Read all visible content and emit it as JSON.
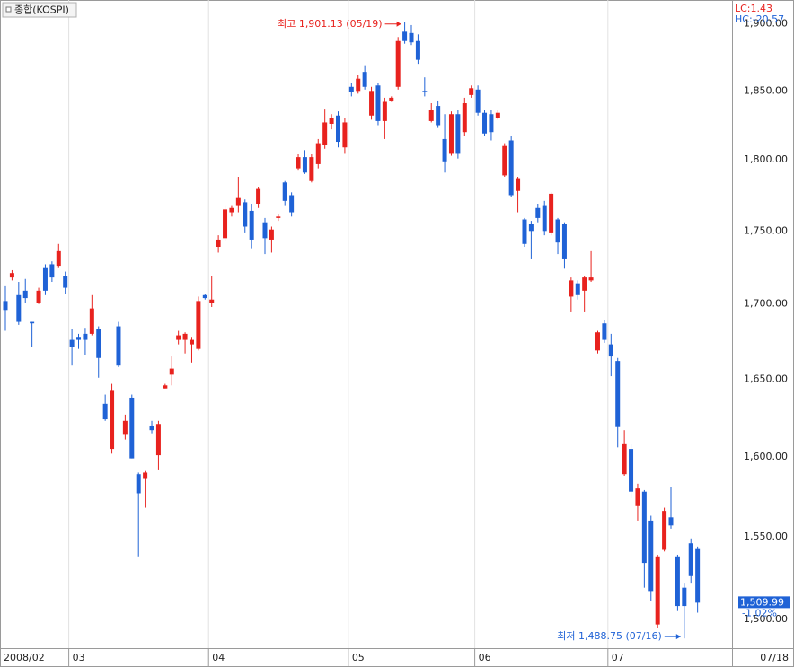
{
  "chart_data": {
    "type": "candlestick",
    "legend": "종합(KOSPI)",
    "lc_label": "LC:1.43",
    "hc_label": "HC:-20.57",
    "high_label": "최고 1,901.13 (05/19)",
    "low_label": "최저 1,488.75 (07/16)",
    "last_price": {
      "value": 1509.99,
      "label": "1,509.99"
    },
    "change_label": "-1.02%",
    "end_label": "07/18",
    "up_color": "#e8221e",
    "down_color": "#1f62d6",
    "log_scale": true,
    "grid": true,
    "ylim": [
      1483,
      1918
    ],
    "yticks": [
      {
        "value": 1500,
        "label": "1,500.00"
      },
      {
        "value": 1550,
        "label": "1,550.00"
      },
      {
        "value": 1600,
        "label": "1,600.00"
      },
      {
        "value": 1650,
        "label": "1,650.00"
      },
      {
        "value": 1700,
        "label": "1,700.00"
      },
      {
        "value": 1750,
        "label": "1,750.00"
      },
      {
        "value": 1800,
        "label": "1,800.00"
      },
      {
        "value": 1850,
        "label": "1,850.00"
      },
      {
        "value": 1900,
        "label": "1,900.00"
      }
    ],
    "categories": [
      "2008/02",
      null,
      null,
      null,
      null,
      null,
      null,
      null,
      null,
      null,
      "03",
      null,
      null,
      null,
      null,
      null,
      null,
      null,
      null,
      null,
      null,
      null,
      null,
      null,
      null,
      null,
      null,
      null,
      null,
      null,
      null,
      "04",
      null,
      null,
      null,
      null,
      null,
      null,
      null,
      null,
      null,
      null,
      null,
      null,
      null,
      null,
      null,
      null,
      null,
      null,
      null,
      null,
      "05",
      null,
      null,
      null,
      null,
      null,
      null,
      null,
      null,
      null,
      null,
      null,
      null,
      null,
      null,
      null,
      null,
      null,
      null,
      "06",
      null,
      null,
      null,
      null,
      null,
      null,
      null,
      null,
      null,
      null,
      null,
      null,
      null,
      null,
      null,
      null,
      null,
      null,
      null,
      "07",
      null,
      null,
      null,
      null,
      null,
      null,
      null,
      null,
      null,
      null,
      null,
      null,
      null
    ],
    "open": [
      1702,
      1718,
      1706,
      1709,
      1688,
      1701,
      1725,
      1727,
      1726,
      1719,
      1676,
      1678,
      1680,
      1680,
      1683,
      1634,
      1605,
      1685,
      1614,
      1638,
      1589,
      1586,
      1620,
      1601,
      1644,
      1653,
      1676,
      1676,
      1673,
      1670,
      1706,
      1701,
      1739,
      1745,
      1763,
      1768,
      1770,
      1764,
      1769,
      1756,
      1744,
      1759,
      1784,
      1775,
      1794,
      1802,
      1785,
      1797,
      1811,
      1826,
      1832,
      1809,
      1853,
      1850,
      1864,
      1832,
      1854,
      1828,
      1843,
      1853,
      1894,
      1893,
      1887,
      1850,
      1828,
      1839,
      1815,
      1805,
      1833,
      1820,
      1847,
      1851,
      1834,
      1833,
      1830,
      1789,
      1814,
      1778,
      1758,
      1755,
      1766,
      1768,
      1749,
      1758,
      1755,
      1705,
      1714,
      1709,
      1716,
      1669,
      1687,
      1673,
      1662,
      1589,
      1605,
      1569,
      1578,
      1560,
      1497,
      1542,
      1562,
      1538,
      1519,
      1546,
      1543
    ],
    "high": [
      1712,
      1723,
      1715,
      1717,
      1688,
      1711,
      1727,
      1729,
      1741,
      1722,
      1683,
      1680,
      1684,
      1706,
      1685,
      1640,
      1647,
      1688,
      1627,
      1640,
      1590,
      1591,
      1623,
      1623,
      1647,
      1665,
      1682,
      1681,
      1678,
      1705,
      1707,
      1719,
      1747,
      1768,
      1768,
      1788,
      1772,
      1769,
      1781,
      1759,
      1753,
      1762,
      1785,
      1777,
      1804,
      1807,
      1804,
      1815,
      1837,
      1833,
      1835,
      1830,
      1856,
      1862,
      1869,
      1853,
      1856,
      1845,
      1846,
      1890,
      1901.13,
      1899,
      1892,
      1860,
      1841,
      1843,
      1833,
      1835,
      1836,
      1845,
      1854,
      1854,
      1836,
      1836,
      1836,
      1812,
      1817,
      1788,
      1759,
      1757,
      1769,
      1771,
      1777,
      1759,
      1756,
      1718,
      1716,
      1719,
      1736,
      1682,
      1689,
      1680,
      1664,
      1617,
      1608,
      1583,
      1579,
      1563,
      1539,
      1568,
      1581,
      1539,
      1522,
      1549,
      1544
    ],
    "low": [
      1682,
      1716,
      1686,
      1701,
      1671,
      1700,
      1706,
      1715,
      1725,
      1707,
      1659,
      1670,
      1666,
      1679,
      1651,
      1623,
      1602,
      1658,
      1611,
      1599,
      1538,
      1568,
      1615,
      1592,
      1644,
      1646,
      1673,
      1667,
      1661,
      1669,
      1703,
      1698,
      1735,
      1743,
      1760,
      1763,
      1749,
      1738,
      1766,
      1734,
      1735,
      1757,
      1768,
      1760,
      1793,
      1790,
      1784,
      1794,
      1808,
      1822,
      1809,
      1805,
      1846,
      1848,
      1851,
      1829,
      1825,
      1815,
      1842,
      1851,
      1885,
      1884,
      1870,
      1846,
      1827,
      1823,
      1791,
      1803,
      1801,
      1817,
      1845,
      1832,
      1817,
      1814,
      1829,
      1788,
      1774,
      1763,
      1739,
      1731,
      1756,
      1747,
      1747,
      1734,
      1724,
      1695,
      1703,
      1695,
      1715,
      1667,
      1674,
      1652,
      1606,
      1588,
      1574,
      1560,
      1519,
      1511,
      1495,
      1541,
      1555,
      1505,
      1488.75,
      1522,
      1504
    ],
    "close": [
      1696,
      1721,
      1688,
      1704,
      1687,
      1709,
      1709,
      1718,
      1736,
      1711,
      1671,
      1676,
      1676,
      1697,
      1664,
      1624,
      1643,
      1659,
      1623,
      1599,
      1577,
      1590,
      1617,
      1621,
      1646,
      1657,
      1679,
      1680,
      1676,
      1702,
      1704,
      1703,
      1744,
      1765,
      1766,
      1773,
      1753,
      1744,
      1780,
      1745,
      1751,
      1760,
      1771,
      1763,
      1802,
      1791,
      1802,
      1812,
      1827,
      1830,
      1813,
      1827,
      1849,
      1859,
      1853,
      1850,
      1828,
      1842,
      1845,
      1887,
      1887,
      1886,
      1873,
      1849,
      1836,
      1825,
      1799,
      1833,
      1805,
      1841,
      1852,
      1834,
      1819,
      1820,
      1834,
      1810,
      1775,
      1787,
      1741,
      1750,
      1759,
      1750,
      1776,
      1742,
      1731,
      1716,
      1706,
      1718,
      1718,
      1681,
      1676,
      1665,
      1619,
      1608,
      1578,
      1580,
      1534,
      1517,
      1538,
      1566,
      1557,
      1508,
      1508,
      1526,
      1509.99
    ]
  }
}
